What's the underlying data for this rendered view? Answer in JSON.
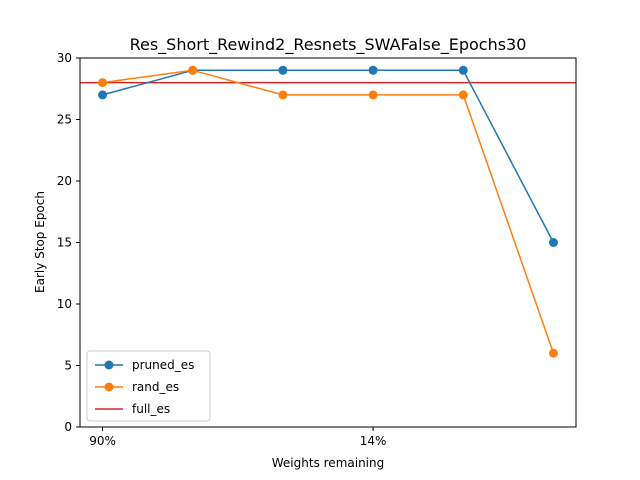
{
  "chart_data": {
    "type": "line",
    "title": "Res_Short_Rewind2_Resnets_SWAFalse_Epochs30",
    "xlabel": "Weights remaining",
    "ylabel": "Early Stop Epoch",
    "x": [
      0,
      1,
      2,
      3,
      4,
      5
    ],
    "xlim": [
      -0.25,
      5.25
    ],
    "ylim": [
      0,
      30
    ],
    "xticks": [
      {
        "x": 0,
        "label": "90%"
      },
      {
        "x": 3,
        "label": "14%"
      }
    ],
    "yticks": [
      0,
      5,
      10,
      15,
      20,
      25,
      30
    ],
    "series": [
      {
        "name": "pruned_es",
        "color": "#1f77b4",
        "marker": "circle",
        "values": [
          27,
          29,
          29,
          29,
          29,
          15
        ]
      },
      {
        "name": "rand_es",
        "color": "#ff7f0e",
        "marker": "circle",
        "values": [
          28,
          29,
          27,
          27,
          27,
          6
        ]
      }
    ],
    "hlines": [
      {
        "name": "full_es",
        "color": "#d62728",
        "y": 28
      }
    ],
    "grid": false,
    "legend_position": "lower-left"
  }
}
